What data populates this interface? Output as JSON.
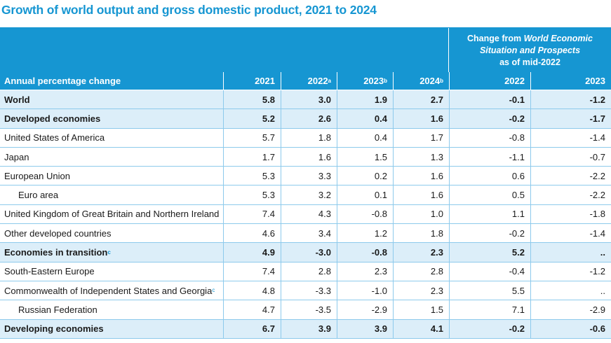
{
  "title": "Growth of world output and gross domestic product, 2021 to 2024",
  "change_header": {
    "line1_prefix": "Change from ",
    "line1_italic": "World Economic",
    "line2_italic": "Situation and Prospects",
    "line3": "as of mid-2022"
  },
  "header": {
    "label": "Annual percentage change",
    "c1": "2021",
    "c2": "2022",
    "c2_sup": "a",
    "c3": "2023",
    "c3_sup": "b",
    "c4": "2024",
    "c4_sup": "b",
    "c5": "2022",
    "c6": "2023"
  },
  "rows": [
    {
      "label": "World",
      "sup": "",
      "vals": [
        "5.8",
        "3.0",
        "1.9",
        "2.7",
        "-0.1",
        "-1.2"
      ]
    },
    {
      "label": "Developed economies",
      "sup": "",
      "vals": [
        "5.2",
        "2.6",
        "0.4",
        "1.6",
        "-0.2",
        "-1.7"
      ]
    },
    {
      "label": "United States of America",
      "sup": "",
      "vals": [
        "5.7",
        "1.8",
        "0.4",
        "1.7",
        "-0.8",
        "-1.4"
      ]
    },
    {
      "label": "Japan",
      "sup": "",
      "vals": [
        "1.7",
        "1.6",
        "1.5",
        "1.3",
        "-1.1",
        "-0.7"
      ]
    },
    {
      "label": "European Union",
      "sup": "",
      "vals": [
        "5.3",
        "3.3",
        "0.2",
        "1.6",
        "0.6",
        "-2.2"
      ]
    },
    {
      "label": "Euro area",
      "sup": "",
      "vals": [
        "5.3",
        "3.2",
        "0.1",
        "1.6",
        "0.5",
        "-2.2"
      ]
    },
    {
      "label": "United Kingdom of Great Britain and Northern Ireland",
      "sup": "",
      "vals": [
        "7.4",
        "4.3",
        "-0.8",
        "1.0",
        "1.1",
        "-1.8"
      ]
    },
    {
      "label": "Other developed countries",
      "sup": "",
      "vals": [
        "4.6",
        "3.4",
        "1.2",
        "1.8",
        "-0.2",
        "-1.4"
      ]
    },
    {
      "label": "Economies in transition",
      "sup": "c",
      "vals": [
        "4.9",
        "-3.0",
        "-0.8",
        "2.3",
        "5.2",
        ".."
      ]
    },
    {
      "label": "South-Eastern Europe",
      "sup": "",
      "vals": [
        "7.4",
        "2.8",
        "2.3",
        "2.8",
        "-0.4",
        "-1.2"
      ]
    },
    {
      "label": "Commonwealth of Independent States and Georgia",
      "sup": "c",
      "vals": [
        "4.8",
        "-3.3",
        "-1.0",
        "2.3",
        "5.5",
        ".."
      ]
    },
    {
      "label": "Russian Federation",
      "sup": "",
      "vals": [
        "4.7",
        "-3.5",
        "-2.9",
        "1.5",
        "7.1",
        "-2.9"
      ]
    },
    {
      "label": "Developing economies",
      "sup": "",
      "vals": [
        "6.7",
        "3.9",
        "3.9",
        "4.1",
        "-0.2",
        "-0.6"
      ]
    }
  ]
}
